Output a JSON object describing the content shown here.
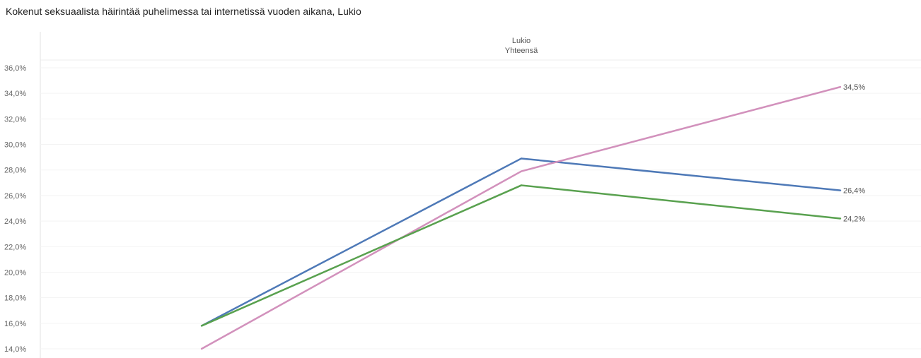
{
  "page_title": "Kokenut seksuaalista häirintää puhelimessa tai internetissä vuoden aikana, Lukio",
  "chart_data": {
    "type": "line",
    "title": "Kokenut seksuaalista häirintää puhelimessa tai internetissä vuoden aikana, Lukio",
    "column_header": [
      "Lukio",
      "Yhteensä"
    ],
    "xlabel": "",
    "ylabel": "",
    "x": [
      0,
      1,
      2
    ],
    "ylim": [
      13.5,
      36.8
    ],
    "y_ticks": [
      14,
      16,
      18,
      20,
      22,
      24,
      26,
      28,
      30,
      32,
      34,
      36
    ],
    "y_tick_labels": [
      "14,0%",
      "16,0%",
      "18,0%",
      "20,0%",
      "22,0%",
      "24,0%",
      "26,0%",
      "28,0%",
      "30,0%",
      "32,0%",
      "34,0%",
      "36,0%"
    ],
    "grid": true,
    "series": [
      {
        "color": "#4e79b7",
        "values": [
          15.8,
          28.9,
          26.4
        ],
        "end_label": "26,4%"
      },
      {
        "color": "#d291bc",
        "values": [
          14.0,
          27.9,
          34.5
        ],
        "end_label": "34,5%"
      },
      {
        "color": "#59a14f",
        "values": [
          15.8,
          26.8,
          24.2
        ],
        "end_label": "24,2%"
      }
    ]
  }
}
